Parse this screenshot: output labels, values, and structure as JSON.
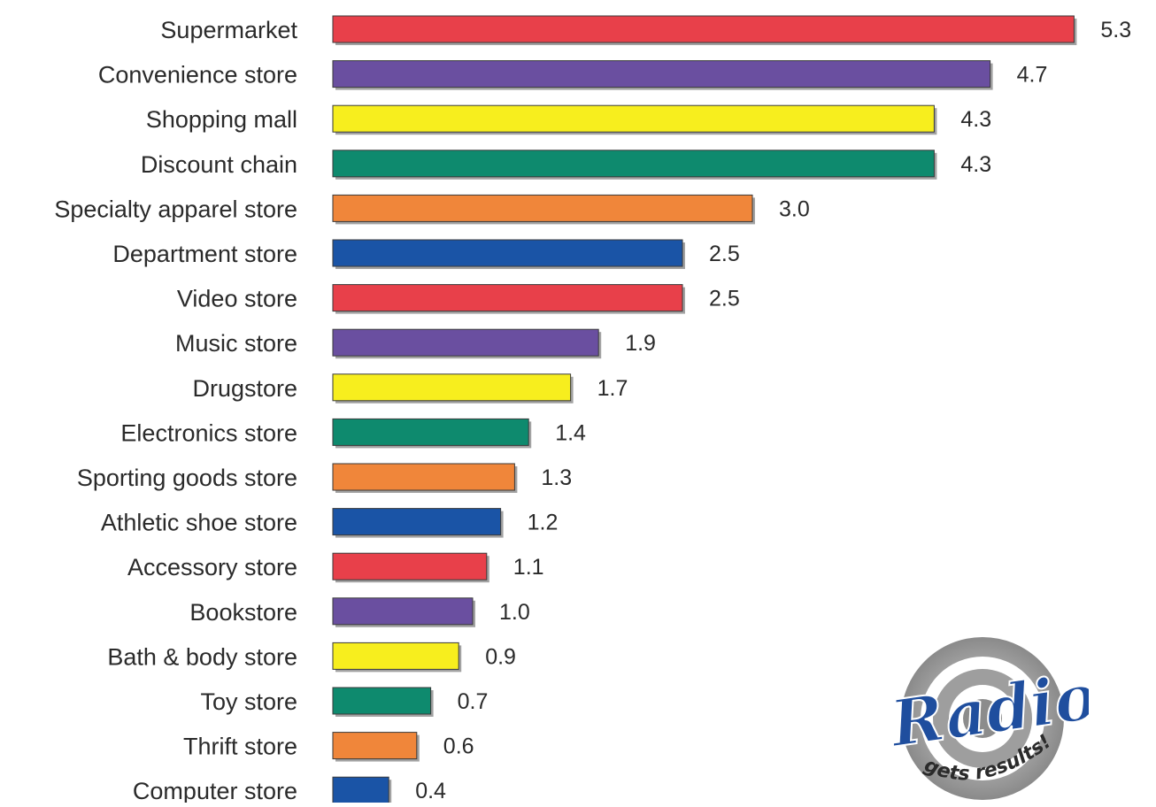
{
  "chart_data": {
    "type": "bar",
    "orientation": "horizontal",
    "categories": [
      "Supermarket",
      "Convenience store",
      "Shopping mall",
      "Discount chain",
      "Specialty apparel store",
      "Department store",
      "Video store",
      "Music store",
      "Drugstore",
      "Electronics store",
      "Sporting goods store",
      "Athletic shoe store",
      "Accessory store",
      "Bookstore",
      "Bath & body store",
      "Toy store",
      "Thrift store",
      "Computer store"
    ],
    "values": [
      5.3,
      4.7,
      4.3,
      4.3,
      3.0,
      2.5,
      2.5,
      1.9,
      1.7,
      1.4,
      1.3,
      1.2,
      1.1,
      1.0,
      0.9,
      0.7,
      0.6,
      0.4
    ],
    "value_labels": [
      "5.3",
      "4.7",
      "4.3",
      "4.3",
      "3.0",
      "2.5",
      "2.5",
      "1.9",
      "1.7",
      "1.4",
      "1.3",
      "1.2",
      "1.1",
      "1.0",
      "0.9",
      "0.7",
      "0.6",
      "0.4"
    ],
    "bar_colors": [
      "#e8404a",
      "#6a4fa0",
      "#f7ee1e",
      "#0e8a6e",
      "#f0863a",
      "#1a54a6",
      "#e8404a",
      "#6a4fa0",
      "#f7ee1e",
      "#0e8a6e",
      "#f0863a",
      "#1a54a6",
      "#e8404a",
      "#6a4fa0",
      "#f7ee1e",
      "#0e8a6e",
      "#f0863a",
      "#1a54a6"
    ],
    "title": "",
    "xlabel": "",
    "ylabel": "",
    "xlim": [
      0,
      5.3
    ],
    "grid": false,
    "legend": "none"
  },
  "logo": {
    "text": "Radio",
    "tagline": "gets results!"
  }
}
